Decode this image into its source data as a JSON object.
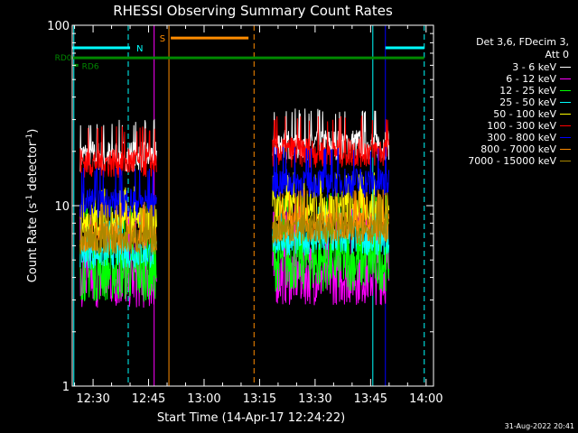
{
  "chart_data": {
    "type": "line",
    "title": "RHESSI Observing Summary Count Rates",
    "xlabel": "Start Time (14-Apr-17 12:24:22)",
    "ylabel_main": "Count Rate (s",
    "ylabel_sup1": "-1",
    "ylabel_mid": " detector",
    "ylabel_sup2": "-1",
    "ylabel_end": ")",
    "y_scale": "log",
    "ylim": [
      1,
      100
    ],
    "xlim_minutes": [
      24.37,
      122
    ],
    "x_ticks": [
      {
        "minutes": 30,
        "label": "12:30"
      },
      {
        "minutes": 45,
        "label": "12:45"
      },
      {
        "minutes": 60,
        "label": "13:00"
      },
      {
        "minutes": 75,
        "label": "13:15"
      },
      {
        "minutes": 90,
        "label": "13:30"
      },
      {
        "minutes": 105,
        "label": "13:45"
      },
      {
        "minutes": 120,
        "label": "14:00"
      }
    ],
    "y_ticks": [
      {
        "value": 1,
        "label": "1"
      },
      {
        "value": 10,
        "label": "10"
      },
      {
        "value": 100,
        "label": "100"
      }
    ],
    "legend_header": [
      "Det 3,6, FDecim 3,",
      "Att 0"
    ],
    "segments": [
      {
        "start": 26.5,
        "end": 47.2
      },
      {
        "start": 78.5,
        "end": 110.0
      }
    ],
    "series": [
      {
        "name": "3 - 6 keV",
        "color": "#ffffff",
        "levels": [
          19,
          22
        ]
      },
      {
        "name": "6 - 12 keV",
        "color": "#ff00ff",
        "levels": [
          4,
          4.2
        ]
      },
      {
        "name": "12 - 25 keV",
        "color": "#00ff00",
        "levels": [
          4.4,
          5.0
        ]
      },
      {
        "name": "25 - 50 keV",
        "color": "#00ffff",
        "levels": [
          5.5,
          6.5
        ]
      },
      {
        "name": "50 - 100 keV",
        "color": "#ffff00",
        "levels": [
          8.2,
          9.8
        ]
      },
      {
        "name": "100 - 300 keV",
        "color": "#ff0000",
        "levels": [
          17.5,
          20
        ]
      },
      {
        "name": "300 - 800 keV",
        "color": "#0000ff",
        "levels": [
          10.5,
          13.5
        ]
      },
      {
        "name": "800 - 7000 keV",
        "color": "#ff8c00",
        "levels": [
          6.8,
          7.8
        ]
      },
      {
        "name": "7000 - 15000 keV",
        "color": "#aa8800",
        "levels": [
          6.5,
          7.5
        ]
      }
    ],
    "flags": [
      {
        "label": "N",
        "color": "#00ffff",
        "start": 24.5,
        "end": 40.0,
        "level": 75
      },
      {
        "label": "",
        "color": "#00ffff",
        "start": 109.0,
        "end": 119.5,
        "level": 75
      },
      {
        "label": "S",
        "color": "#ff8c00",
        "start": 51.0,
        "end": 72.0,
        "level": 85
      },
      {
        "label": "RD0",
        "color": "#008800",
        "start": 24.5,
        "end": 119.5,
        "level": 66
      },
      {
        "label": "RD6",
        "color": "#008800",
        "start": 24.8,
        "end": 26.0,
        "level": 60
      }
    ],
    "vlines": [
      {
        "minutes": 24.8,
        "color": "#00ffff",
        "dash": false
      },
      {
        "minutes": 39.5,
        "color": "#00ffff",
        "dash": true
      },
      {
        "minutes": 46.5,
        "color": "#ff00ff",
        "dash": false
      },
      {
        "minutes": 50.5,
        "color": "#ff8c00",
        "dash": false
      },
      {
        "minutes": 73.5,
        "color": "#ff8c00",
        "dash": true
      },
      {
        "minutes": 105.6,
        "color": "#00ffff",
        "dash": false
      },
      {
        "minutes": 109.0,
        "color": "#0000ff",
        "dash": false
      },
      {
        "minutes": 119.5,
        "color": "#00ffff",
        "dash": true
      }
    ]
  },
  "footer": {
    "timestamp": "31-Aug-2022 20:41"
  }
}
